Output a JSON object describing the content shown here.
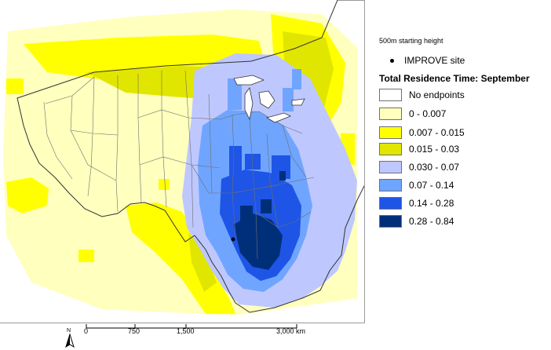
{
  "map": {
    "colors": {
      "land": "#ffffff",
      "outline": "#333333",
      "state_line": "#6e6e6e",
      "site_marker": "#000000"
    }
  },
  "legend": {
    "subtitle": "500m starting height",
    "site_label": "IMPROVE site",
    "title": "Total Residence Time: September",
    "items": [
      {
        "label": "No endpoints",
        "color": "#ffffff"
      },
      {
        "label": "0 - 0.007",
        "color": "#ffffbe"
      },
      {
        "label": "0.007 - 0.015",
        "color": "#ffff00"
      },
      {
        "label": "0.015 - 0.03",
        "color": "#e1e600"
      },
      {
        "label": "0.030 - 0.07",
        "color": "#bec8ff"
      },
      {
        "label": "0.07 - 0.14",
        "color": "#6fa5ff"
      },
      {
        "label": "0.14 - 0.28",
        "color": "#1e55e6"
      },
      {
        "label": "0.28 - 0.84",
        "color": "#002f7a"
      }
    ]
  },
  "scalebar": {
    "north": "N",
    "ticks": [
      "0",
      "750",
      "1,500",
      "3,000 km"
    ]
  }
}
